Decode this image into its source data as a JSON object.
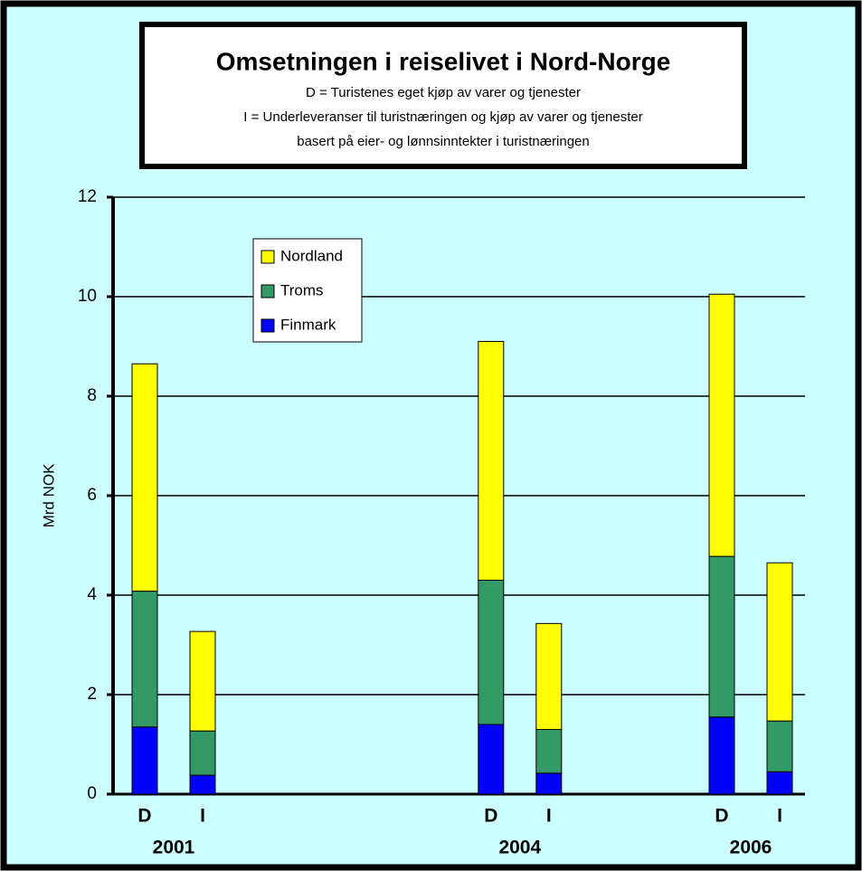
{
  "chart_data": {
    "type": "stacked_bar",
    "title": "Omsetningen i reiselivet i Nord-Norge",
    "subtitle_lines": [
      "D = Turistenes eget kjøp av varer og tjenester",
      "I = Underleveranser til turistnæringen og kjøp av varer og tjenester",
      "basert på eier- og lønnsinntekter i turistnæringen"
    ],
    "y_label": "Mrd NOK",
    "categories": [
      "D",
      "I",
      "D",
      "I",
      "D",
      "I"
    ],
    "groups": [
      2001,
      2004,
      2006
    ],
    "series": [
      {
        "name": "Finmark",
        "color": "#0000ff",
        "values": [
          1.35,
          0.38,
          1.4,
          0.42,
          1.55,
          0.45
        ]
      },
      {
        "name": "Troms",
        "color": "#339966",
        "values": [
          2.73,
          0.89,
          2.9,
          0.88,
          3.23,
          1.02
        ]
      },
      {
        "name": "Nordland",
        "color": "#ffff00",
        "values": [
          4.57,
          2.0,
          4.8,
          2.13,
          5.27,
          3.18
        ]
      }
    ],
    "ylim": [
      0,
      12
    ],
    "yticks": [
      0,
      2,
      4,
      6,
      8,
      10,
      12
    ],
    "grid": true
  }
}
